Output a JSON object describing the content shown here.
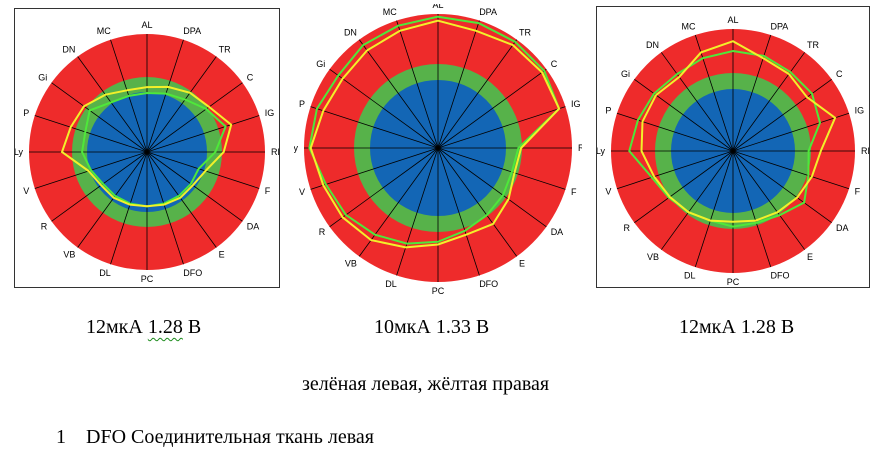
{
  "colors": {
    "outer": "#ee2b2b",
    "ring": "#57b24a",
    "core": "#1366b5",
    "left_series": "#4ee83a",
    "right_series": "#f2f02a",
    "spoke": "#000000"
  },
  "axis_labels": [
    "AL",
    "DPA",
    "TR",
    "C",
    "IG",
    "RP",
    "F",
    "DA",
    "E",
    "DFO",
    "PC",
    "DL",
    "VB",
    "R",
    "V",
    "Ly",
    "P",
    "Gi",
    "DN",
    "MC"
  ],
  "charts": [
    {
      "caption_value": "12мкА",
      "caption_voltage_value": "1.28",
      "caption_unit": "В",
      "left": [
        0.5,
        0.52,
        0.55,
        0.62,
        0.7,
        0.58,
        0.46,
        0.46,
        0.46,
        0.46,
        0.46,
        0.46,
        0.46,
        0.46,
        0.5,
        0.55,
        0.55,
        0.6,
        0.52,
        0.5
      ],
      "right": [
        0.55,
        0.58,
        0.62,
        0.65,
        0.75,
        0.65,
        0.52,
        0.48,
        0.48,
        0.47,
        0.46,
        0.47,
        0.48,
        0.48,
        0.52,
        0.72,
        0.68,
        0.66,
        0.6,
        0.55
      ]
    },
    {
      "caption_value": "10мкА",
      "caption_voltage_value": "1.33",
      "caption_unit": "В",
      "left": [
        0.98,
        0.98,
        0.98,
        0.98,
        0.95,
        0.6,
        0.58,
        0.6,
        0.62,
        0.65,
        0.7,
        0.75,
        0.8,
        0.85,
        0.88,
        0.96,
        0.95,
        0.92,
        0.95,
        0.96
      ],
      "right": [
        0.95,
        0.92,
        0.95,
        0.96,
        0.95,
        0.62,
        0.6,
        0.65,
        0.7,
        0.68,
        0.72,
        0.78,
        0.85,
        0.88,
        0.9,
        0.95,
        0.9,
        0.88,
        0.9,
        0.92
      ]
    },
    {
      "caption_value": "12мкА",
      "caption_voltage_value": "1.28",
      "caption_unit": "В",
      "left": [
        0.82,
        0.82,
        0.8,
        0.8,
        0.75,
        0.62,
        0.65,
        0.72,
        0.65,
        0.62,
        0.62,
        0.6,
        0.62,
        0.65,
        0.7,
        0.85,
        0.82,
        0.8,
        0.78,
        0.8
      ],
      "right": [
        0.9,
        0.8,
        0.78,
        0.75,
        0.88,
        0.72,
        0.68,
        0.65,
        0.62,
        0.6,
        0.58,
        0.6,
        0.62,
        0.64,
        0.68,
        0.75,
        0.78,
        0.78,
        0.75,
        0.85
      ]
    }
  ],
  "legend": "зелёная левая, жёлтая правая",
  "note": {
    "number": "1",
    "text": "DFO Соединительная ткань левая"
  }
}
